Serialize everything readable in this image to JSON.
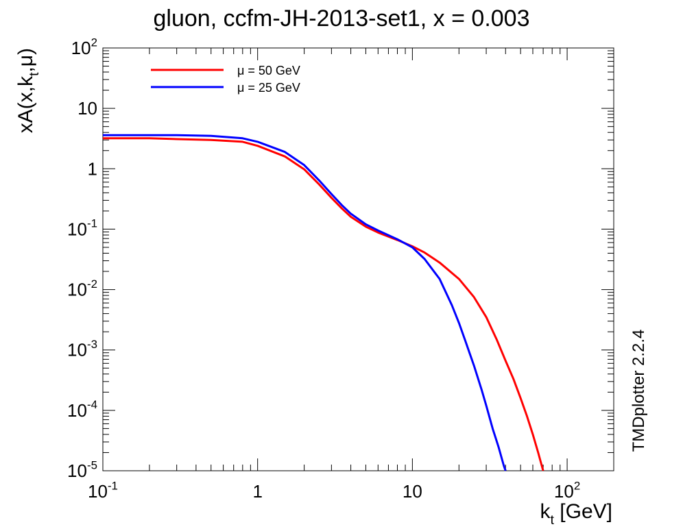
{
  "chart_data": {
    "type": "line",
    "title": "gluon, ccfm-JH-2013-set1, x = 0.003",
    "xlabel": "k_t [GeV]",
    "ylabel": "xA(x,k_t,μ)",
    "xscale": "log",
    "yscale": "log",
    "xlim": [
      0.1,
      200
    ],
    "ylim": [
      1e-05,
      100
    ],
    "x_tick_labels": [
      "10^-1",
      "1",
      "10",
      "10^2"
    ],
    "y_tick_labels": [
      "10^-5",
      "10^-4",
      "10^-3",
      "10^-2",
      "10^-1",
      "1",
      "10",
      "10^2"
    ],
    "legend_position": "top-left",
    "series": [
      {
        "name": "μ = 50 GeV",
        "color": "#ff0000",
        "x": [
          0.1,
          0.2,
          0.3,
          0.5,
          0.8,
          1.0,
          1.5,
          2.0,
          2.5,
          3.0,
          3.5,
          4.0,
          5.0,
          6.0,
          8.0,
          10.0,
          12.0,
          15.0,
          20.0,
          25.0,
          30.0,
          35.0,
          40.0,
          45.0,
          50.0,
          55.0,
          60.0,
          65.0,
          70.0
        ],
        "y": [
          3.2,
          3.2,
          3.1,
          3.0,
          2.8,
          2.4,
          1.6,
          0.98,
          0.55,
          0.33,
          0.22,
          0.16,
          0.11,
          0.088,
          0.066,
          0.052,
          0.041,
          0.028,
          0.015,
          0.0075,
          0.0035,
          0.0015,
          0.00066,
          0.00033,
          0.00016,
          8e-05,
          4e-05,
          2e-05,
          1e-05
        ]
      },
      {
        "name": "μ = 25 GeV",
        "color": "#0000ff",
        "x": [
          0.1,
          0.2,
          0.3,
          0.5,
          0.8,
          1.0,
          1.5,
          2.0,
          2.5,
          3.0,
          3.5,
          4.0,
          5.0,
          6.0,
          8.0,
          10.0,
          12.0,
          15.0,
          18.0,
          20.0,
          22.0,
          25.0,
          28.0,
          30.0,
          33.0,
          36.0,
          39.0,
          40.0
        ],
        "y": [
          3.6,
          3.6,
          3.6,
          3.5,
          3.2,
          2.8,
          1.9,
          1.15,
          0.64,
          0.38,
          0.25,
          0.18,
          0.12,
          0.095,
          0.068,
          0.05,
          0.032,
          0.015,
          0.0055,
          0.0028,
          0.0014,
          0.00055,
          0.00022,
          0.00012,
          5e-05,
          2.5e-05,
          1.2e-05,
          1e-05
        ]
      }
    ],
    "side_label": "TMDplotter 2.2.4"
  }
}
